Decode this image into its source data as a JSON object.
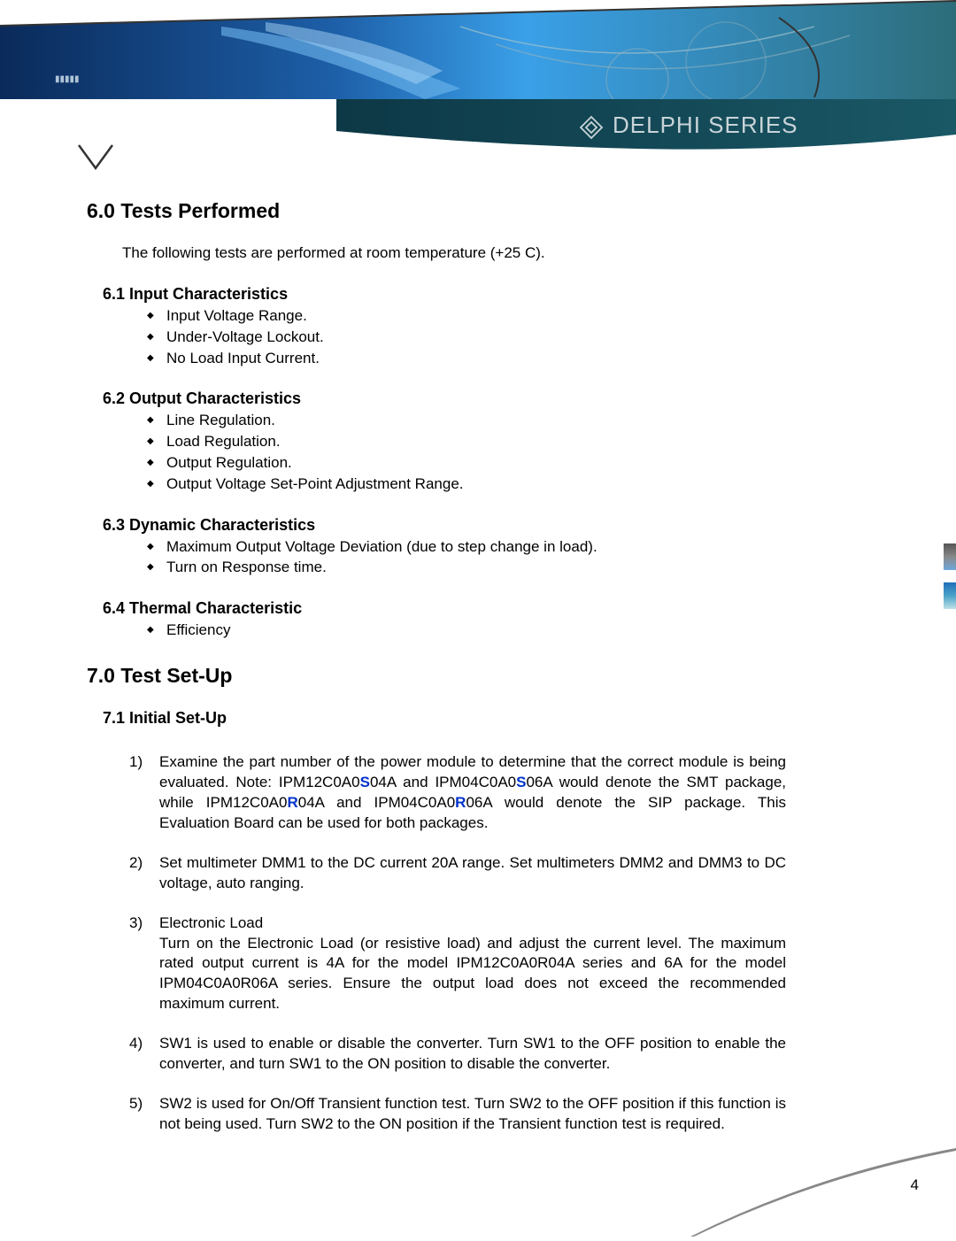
{
  "header": {
    "brand_text": "DELPHI SERIES"
  },
  "section6": {
    "heading": "6.0 Tests Performed",
    "intro": "The following tests are performed at room temperature (+25 C).",
    "subs": [
      {
        "title": "6.1 Input Characteristics",
        "items": [
          "Input Voltage Range.",
          "Under-Voltage Lockout.",
          "No Load Input Current."
        ]
      },
      {
        "title": "6.2 Output Characteristics",
        "items": [
          "Line Regulation.",
          "Load Regulation.",
          "Output Regulation.",
          "Output Voltage Set-Point Adjustment Range."
        ]
      },
      {
        "title": "6.3 Dynamic Characteristics",
        "items": [
          "Maximum Output Voltage Deviation (due to step change in load).",
          "Turn on Response time."
        ]
      },
      {
        "title": "6.4 Thermal Characteristic",
        "items": [
          "Efficiency"
        ]
      }
    ]
  },
  "section7": {
    "heading": "7.0 Test Set-Up",
    "sub_heading": "7.1  Initial Set-Up",
    "step1": {
      "pre": "Examine the part number of the power module to determine that the correct module is being evaluated.  Note: IPM12C0A0",
      "s1": "S",
      "mid1": "04A and IPM04C0A0",
      "s2": "S",
      "mid2": "06A would denote the SMT package, while IPM12C0A0",
      "r1": "R",
      "mid3": "04A and IPM04C0A0",
      "r2": "R",
      "post": "06A would denote the SIP package. This Evaluation Board can be used for both packages."
    },
    "steps_rest": [
      "Set multimeter DMM1 to the DC current 20A range.  Set multimeters DMM2 and DMM3 to DC voltage, auto ranging.",
      "Electronic Load\nTurn on the Electronic Load (or resistive load) and adjust the current level. The maximum rated output current is 4A for the model IPM12C0A0R04A series and 6A for the model IPM04C0A0R06A series. Ensure the output load does not exceed the recommended maximum current.",
      "SW1 is used to enable or disable the converter. Turn SW1 to the OFF position to enable the converter, and turn SW1 to the ON position to disable the converter.",
      "SW2 is used for On/Off Transient function test. Turn SW2 to the OFF position if this function is not being used. Turn SW2 to the ON position if the Transient function test is required."
    ]
  },
  "page_number": "4",
  "colors": {
    "banner_blue_dark": "#0a2a5a",
    "banner_blue_mid": "#1d5fa8",
    "banner_cyan": "#3aa0e8",
    "banner_teal": "#2d6d7a",
    "accent_blue": "#0033cc"
  }
}
